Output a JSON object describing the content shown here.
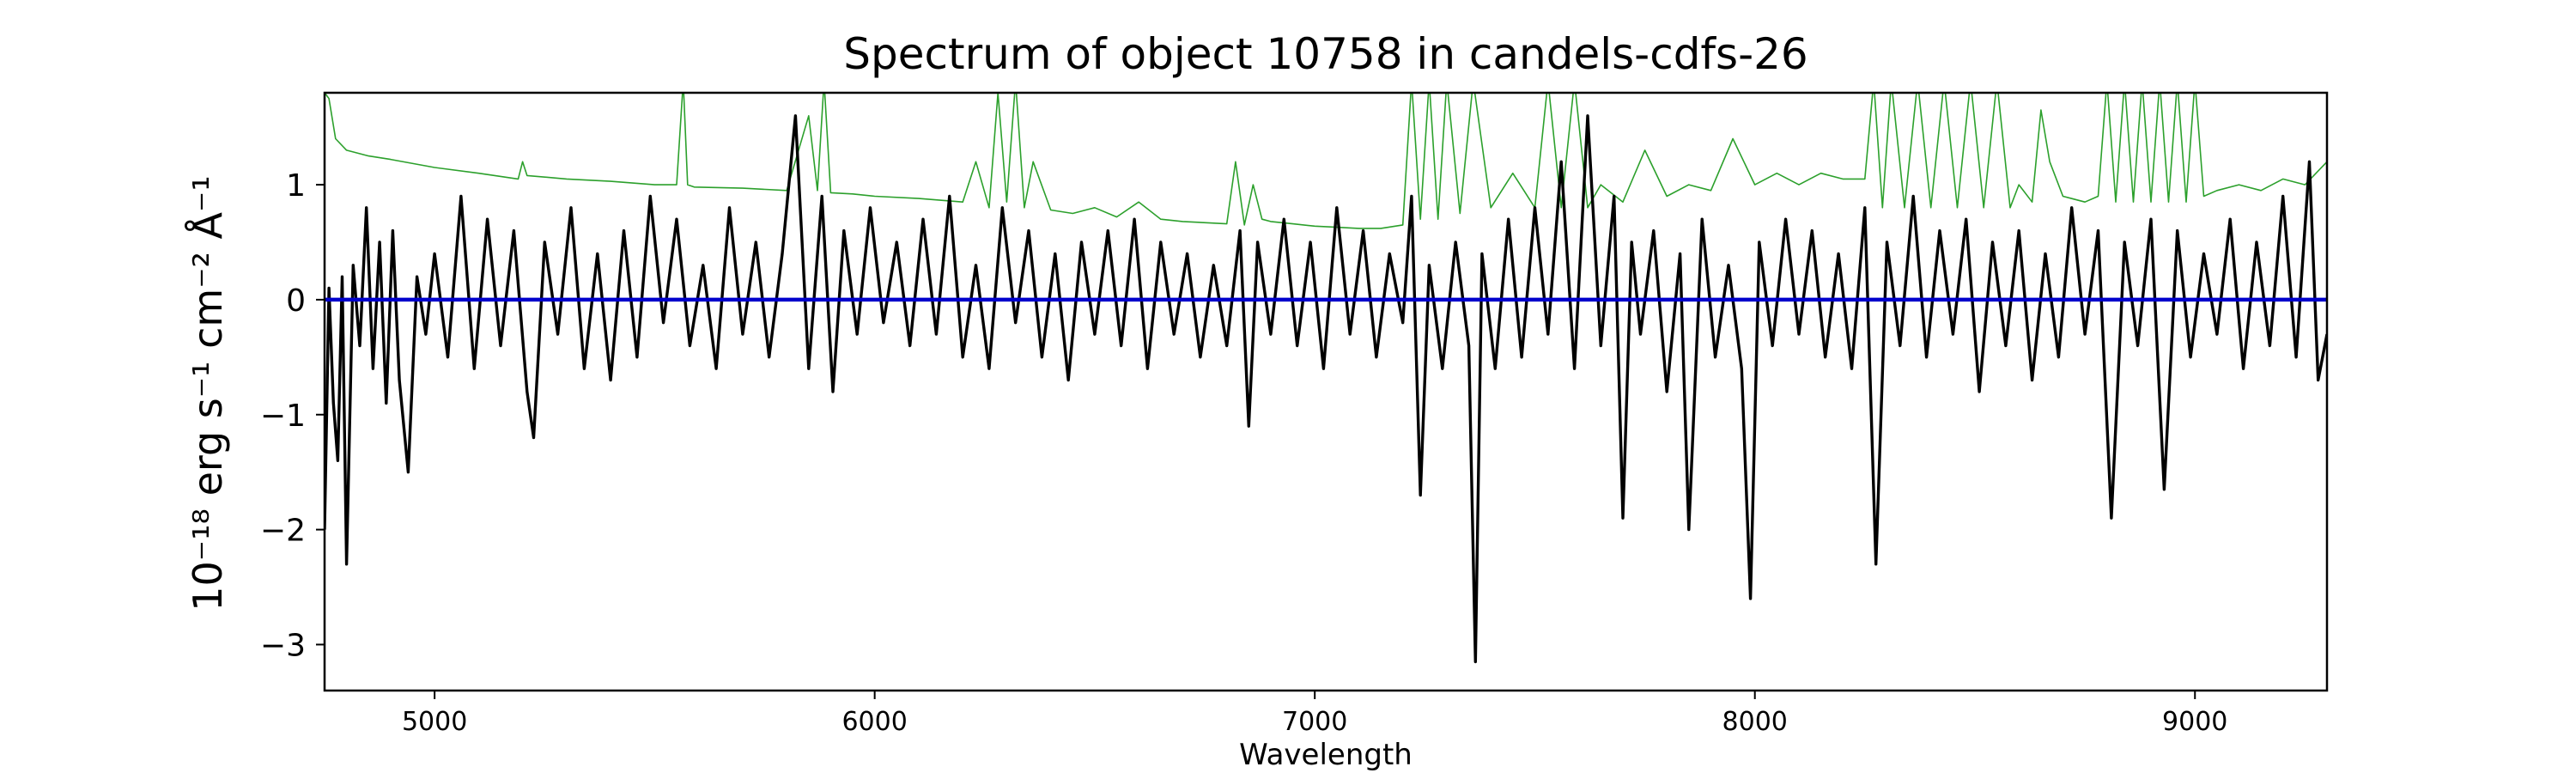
{
  "chart_data": {
    "type": "line",
    "title": "Spectrum of object 10758 in candels-cdfs-26",
    "xlabel": "Wavelength",
    "ylabel": "10⁻¹⁸ erg s⁻¹ cm⁻² Å⁻¹",
    "xlim": [
      4750,
      9300
    ],
    "ylim": [
      -3.4,
      1.8
    ],
    "xticks": [
      5000,
      6000,
      7000,
      8000,
      9000
    ],
    "xtick_labels": [
      "5000",
      "6000",
      "7000",
      "8000",
      "9000"
    ],
    "yticks": [
      -3,
      -2,
      -1,
      0,
      1
    ],
    "ytick_labels": [
      "−3",
      "−2",
      "−1",
      "0",
      "1"
    ],
    "grid": false,
    "colors": {
      "flux": "#000000",
      "error": "#2ca02c",
      "zero": "#0000cc"
    },
    "series": [
      {
        "id": "flux",
        "x": [
          4750,
          4760,
          4770,
          4780,
          4790,
          4800,
          4815,
          4830,
          4845,
          4860,
          4875,
          4890,
          4905,
          4920,
          4940,
          4960,
          4980,
          5000,
          5030,
          5060,
          5090,
          5120,
          5150,
          5180,
          5210,
          5225,
          5250,
          5280,
          5310,
          5340,
          5370,
          5400,
          5430,
          5460,
          5490,
          5520,
          5550,
          5580,
          5610,
          5640,
          5670,
          5700,
          5730,
          5760,
          5790,
          5820,
          5850,
          5880,
          5905,
          5930,
          5960,
          5990,
          6020,
          6050,
          6080,
          6110,
          6140,
          6170,
          6200,
          6230,
          6260,
          6290,
          6320,
          6350,
          6380,
          6410,
          6440,
          6470,
          6500,
          6530,
          6560,
          6590,
          6620,
          6650,
          6680,
          6710,
          6740,
          6770,
          6800,
          6830,
          6850,
          6870,
          6900,
          6930,
          6960,
          6990,
          7020,
          7050,
          7080,
          7110,
          7140,
          7170,
          7200,
          7220,
          7240,
          7260,
          7290,
          7320,
          7350,
          7365,
          7380,
          7410,
          7440,
          7470,
          7500,
          7530,
          7560,
          7590,
          7620,
          7650,
          7680,
          7700,
          7720,
          7740,
          7770,
          7800,
          7830,
          7850,
          7880,
          7910,
          7940,
          7970,
          7990,
          8010,
          8040,
          8070,
          8100,
          8130,
          8160,
          8190,
          8220,
          8250,
          8275,
          8300,
          8330,
          8360,
          8390,
          8420,
          8450,
          8480,
          8510,
          8540,
          8570,
          8600,
          8630,
          8660,
          8690,
          8720,
          8750,
          8780,
          8810,
          8840,
          8870,
          8900,
          8930,
          8960,
          8990,
          9020,
          9050,
          9080,
          9110,
          9140,
          9170,
          9200,
          9230,
          9260,
          9280,
          9300
        ],
        "y": [
          -2.0,
          0.1,
          -0.9,
          -1.4,
          0.2,
          -2.3,
          0.3,
          -0.4,
          0.8,
          -0.6,
          0.5,
          -0.9,
          0.6,
          -0.7,
          -1.5,
          0.2,
          -0.3,
          0.4,
          -0.5,
          0.9,
          -0.6,
          0.7,
          -0.4,
          0.6,
          -0.8,
          -1.2,
          0.5,
          -0.3,
          0.8,
          -0.6,
          0.4,
          -0.7,
          0.6,
          -0.5,
          0.9,
          -0.2,
          0.7,
          -0.4,
          0.3,
          -0.6,
          0.8,
          -0.3,
          0.5,
          -0.5,
          0.4,
          1.6,
          -0.6,
          0.9,
          -0.8,
          0.6,
          -0.3,
          0.8,
          -0.2,
          0.5,
          -0.4,
          0.7,
          -0.3,
          0.9,
          -0.5,
          0.3,
          -0.6,
          0.8,
          -0.2,
          0.6,
          -0.5,
          0.4,
          -0.7,
          0.5,
          -0.3,
          0.6,
          -0.4,
          0.7,
          -0.6,
          0.5,
          -0.3,
          0.4,
          -0.5,
          0.3,
          -0.4,
          0.6,
          -1.1,
          0.5,
          -0.3,
          0.7,
          -0.4,
          0.5,
          -0.6,
          0.8,
          -0.3,
          0.6,
          -0.5,
          0.4,
          -0.2,
          0.9,
          -1.7,
          0.3,
          -0.6,
          0.5,
          -0.4,
          -3.15,
          0.4,
          -0.6,
          0.7,
          -0.5,
          0.8,
          -0.3,
          1.2,
          -0.6,
          1.6,
          -0.4,
          0.9,
          -1.9,
          0.5,
          -0.3,
          0.6,
          -0.8,
          0.4,
          -2.0,
          0.7,
          -0.5,
          0.3,
          -0.6,
          -2.6,
          0.5,
          -0.4,
          0.7,
          -0.3,
          0.6,
          -0.5,
          0.4,
          -0.6,
          0.8,
          -2.3,
          0.5,
          -0.4,
          0.9,
          -0.5,
          0.6,
          -0.3,
          0.7,
          -0.8,
          0.5,
          -0.4,
          0.6,
          -0.7,
          0.4,
          -0.5,
          0.8,
          -0.3,
          0.6,
          -1.9,
          0.5,
          -0.4,
          0.7,
          -1.65,
          0.6,
          -0.5,
          0.4,
          -0.3,
          0.7,
          -0.6,
          0.5,
          -0.4,
          0.9,
          -0.5,
          1.2,
          -0.7,
          -0.3
        ]
      },
      {
        "id": "error",
        "x": [
          4750,
          4760,
          4775,
          4800,
          4850,
          4900,
          5000,
          5100,
          5190,
          5200,
          5210,
          5300,
          5400,
          5500,
          5550,
          5565,
          5575,
          5590,
          5700,
          5800,
          5850,
          5870,
          5885,
          5900,
          5950,
          6000,
          6100,
          6200,
          6230,
          6260,
          6280,
          6300,
          6320,
          6340,
          6360,
          6400,
          6450,
          6500,
          6550,
          6600,
          6650,
          6700,
          6800,
          6820,
          6840,
          6860,
          6880,
          6900,
          6950,
          7000,
          7050,
          7100,
          7150,
          7200,
          7220,
          7240,
          7260,
          7280,
          7300,
          7330,
          7360,
          7400,
          7450,
          7500,
          7530,
          7560,
          7590,
          7620,
          7650,
          7700,
          7750,
          7800,
          7850,
          7900,
          7950,
          8000,
          8050,
          8100,
          8150,
          8200,
          8250,
          8270,
          8290,
          8310,
          8340,
          8370,
          8400,
          8430,
          8460,
          8490,
          8520,
          8550,
          8580,
          8600,
          8630,
          8650,
          8670,
          8700,
          8750,
          8780,
          8800,
          8820,
          8840,
          8860,
          8880,
          8900,
          8920,
          8940,
          8960,
          8980,
          9000,
          9020,
          9050,
          9100,
          9150,
          9200,
          9250,
          9300
        ],
        "y": [
          1.8,
          1.75,
          1.4,
          1.3,
          1.25,
          1.22,
          1.15,
          1.1,
          1.05,
          1.2,
          1.08,
          1.05,
          1.03,
          1.0,
          1.0,
          1.9,
          1.0,
          0.98,
          0.97,
          0.95,
          1.6,
          0.95,
          1.9,
          0.93,
          0.92,
          0.9,
          0.88,
          0.85,
          1.2,
          0.8,
          1.8,
          0.85,
          1.9,
          0.8,
          1.2,
          0.78,
          0.75,
          0.8,
          0.72,
          0.85,
          0.7,
          0.68,
          0.66,
          1.2,
          0.65,
          1.0,
          0.7,
          0.68,
          0.66,
          0.64,
          0.63,
          0.62,
          0.62,
          0.65,
          1.9,
          0.7,
          1.9,
          0.7,
          1.9,
          0.75,
          1.9,
          0.8,
          1.1,
          0.8,
          1.9,
          0.8,
          1.9,
          0.8,
          1.0,
          0.85,
          1.3,
          0.9,
          1.0,
          0.95,
          1.4,
          1.0,
          1.1,
          1.0,
          1.1,
          1.05,
          1.05,
          1.9,
          0.8,
          1.9,
          0.8,
          1.9,
          0.8,
          1.9,
          0.8,
          1.9,
          0.8,
          1.9,
          0.8,
          1.0,
          0.85,
          1.65,
          1.2,
          0.9,
          0.85,
          0.9,
          1.9,
          0.85,
          1.9,
          0.85,
          1.9,
          0.85,
          1.9,
          0.85,
          1.9,
          0.85,
          1.9,
          0.9,
          0.95,
          1.0,
          0.95,
          1.05,
          1.0,
          1.2
        ]
      },
      {
        "id": "zero",
        "x": [
          4750,
          9300
        ],
        "y": [
          0,
          0
        ]
      }
    ]
  }
}
